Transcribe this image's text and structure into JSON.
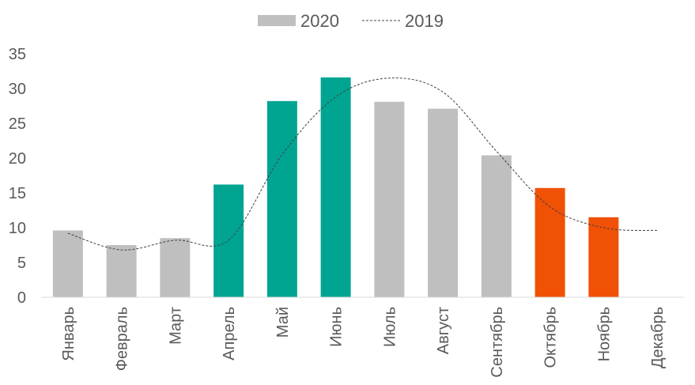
{
  "chart_data": {
    "type": "bar",
    "categories": [
      "Январь",
      "Февраль",
      "Март",
      "Апрель",
      "Май",
      "Июнь",
      "Июль",
      "Август",
      "Сентябрь",
      "Октябрь",
      "Ноябрь",
      "Декабрь"
    ],
    "series": [
      {
        "name": "2020",
        "kind": "bar",
        "values": [
          9.6,
          7.5,
          8.5,
          16.2,
          28.2,
          31.6,
          28.1,
          27.1,
          20.4,
          15.7,
          11.5,
          null
        ],
        "bar_colors": [
          "#bfbfbf",
          "#bfbfbf",
          "#bfbfbf",
          "#00a591",
          "#00a591",
          "#00a591",
          "#bfbfbf",
          "#bfbfbf",
          "#bfbfbf",
          "#f05105",
          "#f05105",
          null
        ],
        "legend_color": "#bfbfbf"
      },
      {
        "name": "2019",
        "kind": "line",
        "style": "dashed",
        "values": [
          9.2,
          6.8,
          8.2,
          8.2,
          20.5,
          28.8,
          31.5,
          29.5,
          21.0,
          13.0,
          10.0,
          9.6
        ],
        "color": "#404040"
      }
    ],
    "yticks": [
      "0",
      "5",
      "10",
      "15",
      "20",
      "25",
      "30",
      "35"
    ],
    "ylim": [
      0,
      35
    ],
    "grid": false,
    "legend_position": "top-center",
    "title": "",
    "xlabel": "",
    "ylabel": ""
  }
}
